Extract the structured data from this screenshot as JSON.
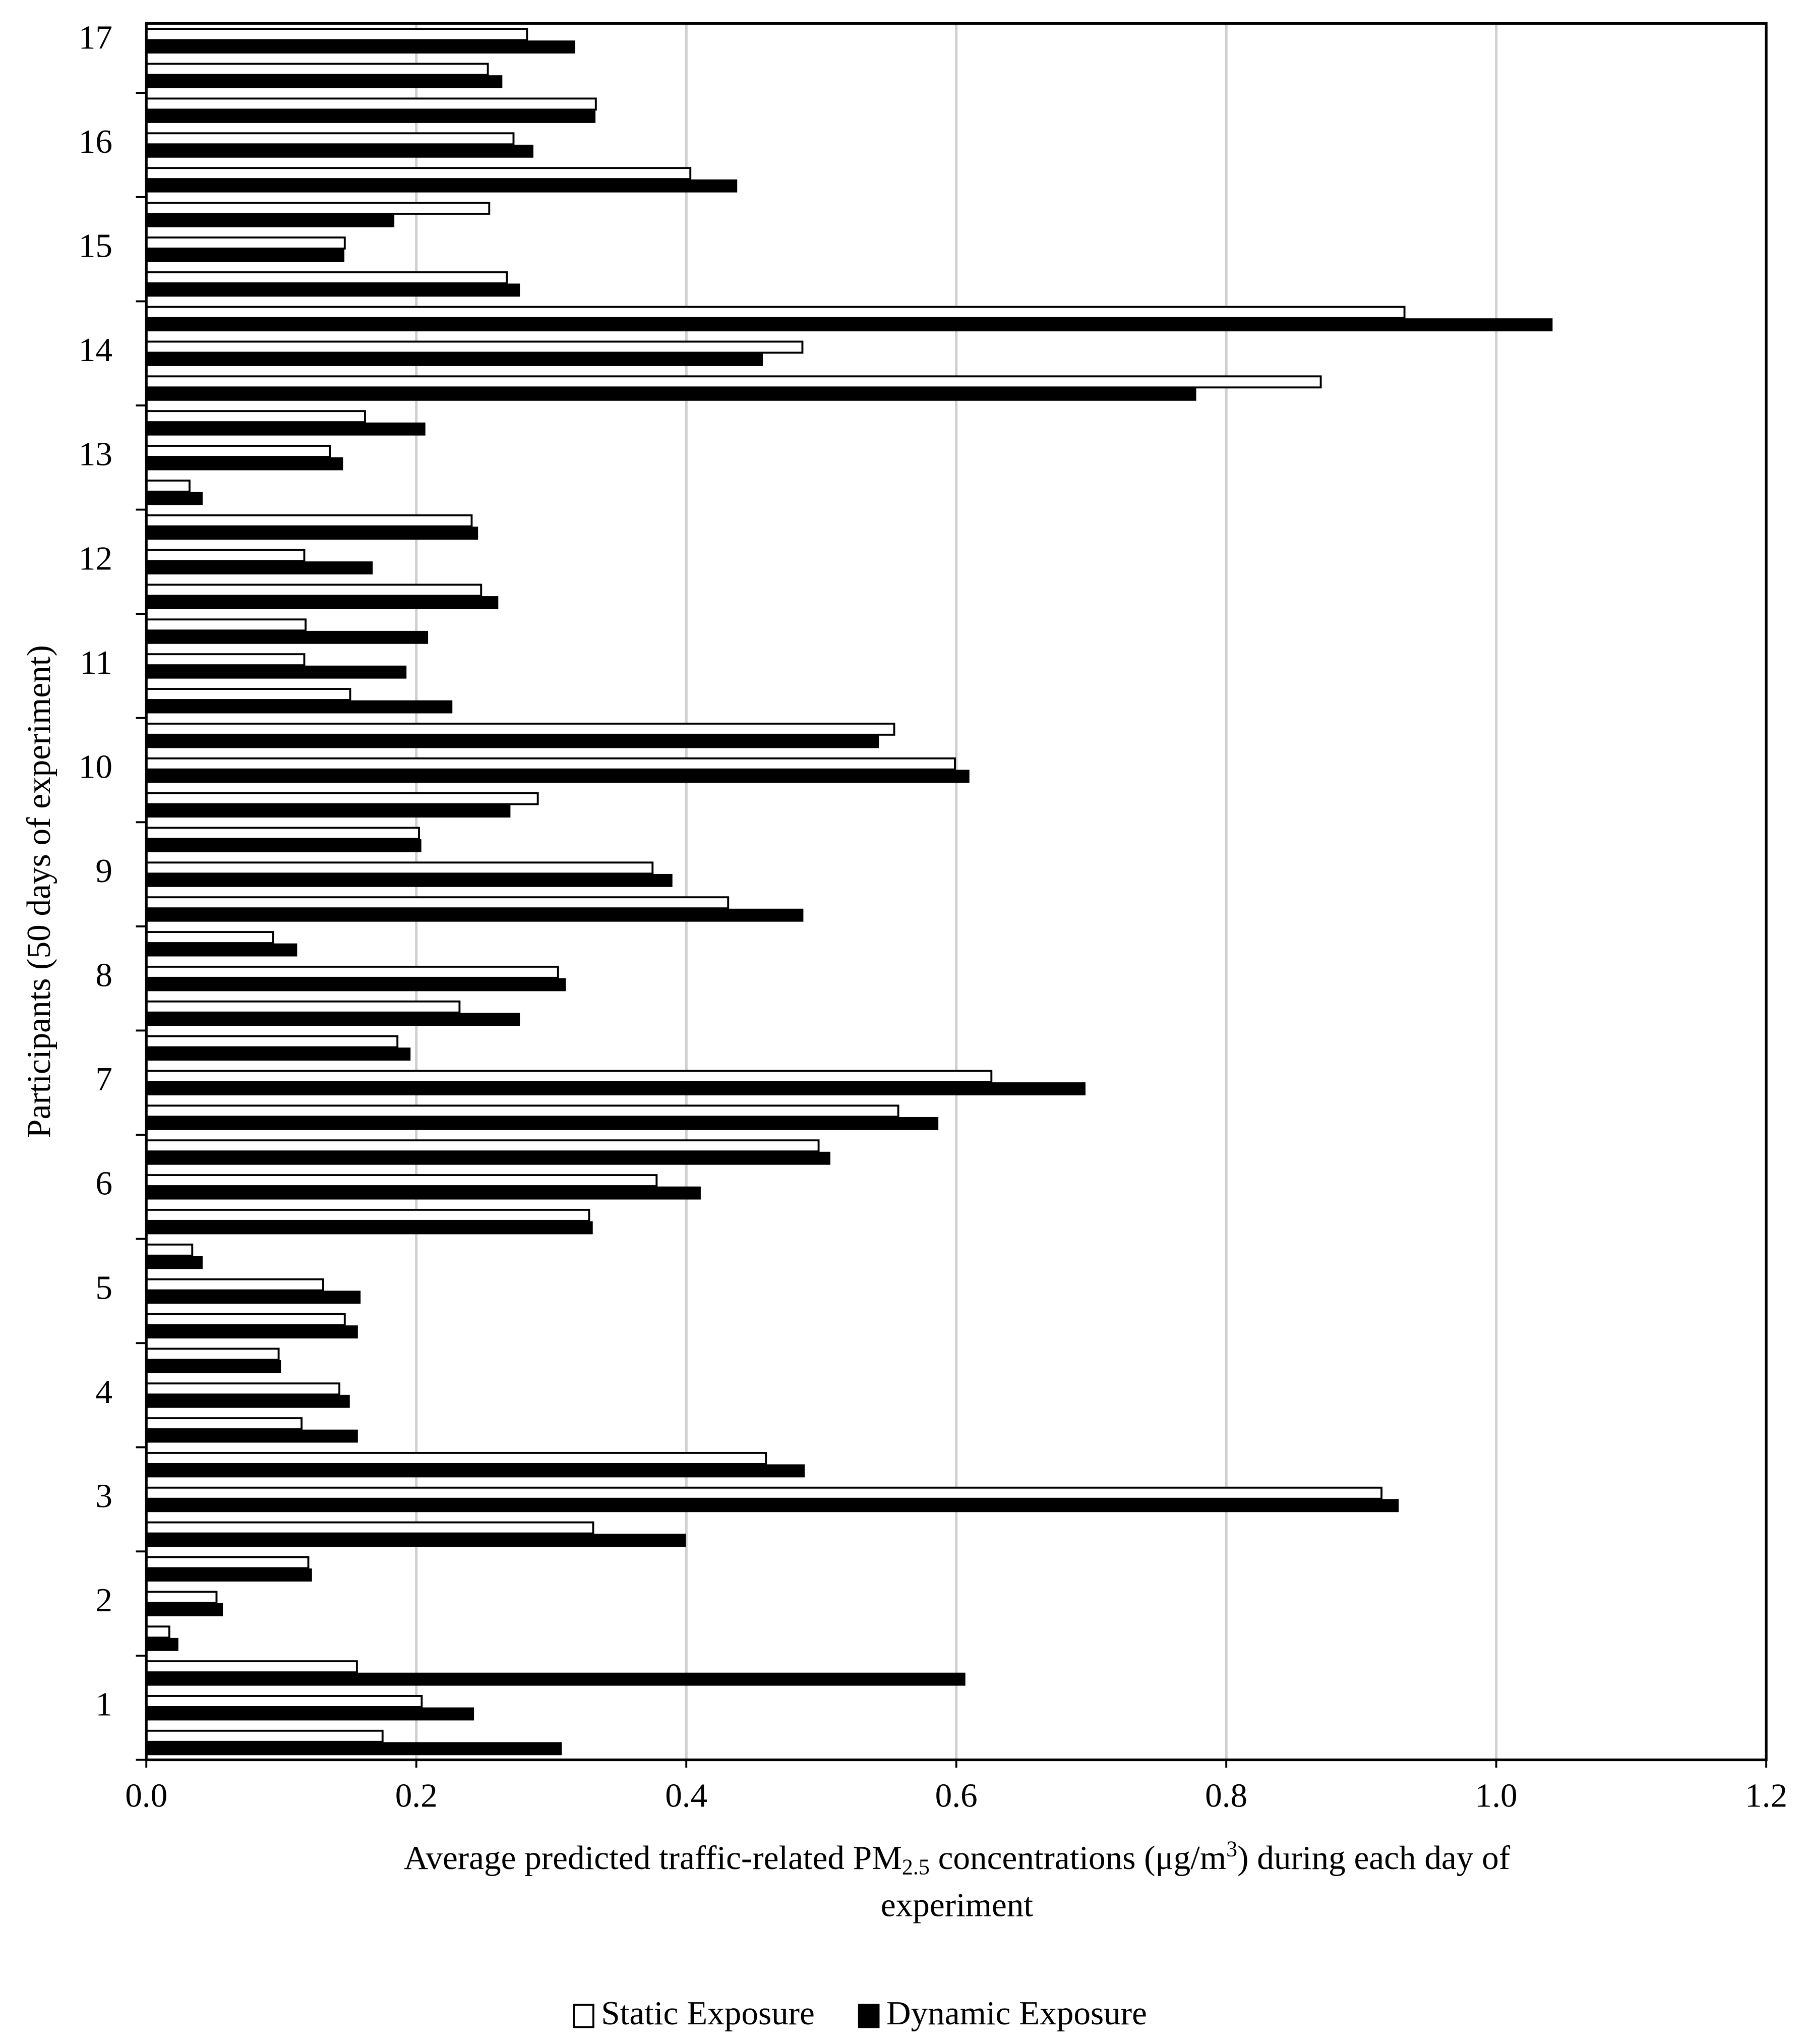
{
  "chart_data": {
    "type": "bar",
    "orientation": "horizontal",
    "y_label": "Participants (50 days of experiment)",
    "x_label": {
      "line1": [
        "Average predicted traffic-related PM",
        "2.5",
        " concentrations (μg/m",
        "3",
        ") during each day of"
      ],
      "line2": "experiment"
    },
    "categories": [
      null,
      "1",
      null,
      null,
      "2",
      null,
      null,
      "3",
      null,
      null,
      "4",
      null,
      null,
      "5",
      null,
      null,
      "6",
      null,
      null,
      "7",
      null,
      null,
      "8",
      null,
      null,
      "9",
      null,
      null,
      "10",
      null,
      null,
      "11",
      null,
      null,
      "12",
      null,
      null,
      "13",
      null,
      null,
      "14",
      null,
      null,
      "15",
      null,
      null,
      "16",
      null,
      null,
      "17"
    ],
    "series": [
      {
        "name": "Static Exposure",
        "color": "#ffffff",
        "stroke": "#000000",
        "values": [
          0.175,
          0.204,
          0.156,
          0.017,
          0.052,
          0.12,
          0.331,
          0.915,
          0.459,
          0.115,
          0.143,
          0.098,
          0.147,
          0.131,
          0.034,
          0.328,
          0.378,
          0.498,
          0.557,
          0.626,
          0.186,
          0.232,
          0.305,
          0.094,
          0.431,
          0.375,
          0.202,
          0.29,
          0.599,
          0.554,
          0.151,
          0.117,
          0.118,
          0.248,
          0.117,
          0.241,
          0.032,
          0.136,
          0.162,
          0.87,
          0.486,
          0.932,
          0.267,
          0.147,
          0.254,
          0.403,
          0.272,
          0.333,
          0.253,
          0.282
        ]
      },
      {
        "name": "Dynamic Exposure",
        "color": "#000000",
        "stroke": "#000000",
        "values": [
          0.307,
          0.242,
          0.606,
          0.023,
          0.056,
          0.122,
          0.399,
          0.927,
          0.487,
          0.156,
          0.15,
          0.099,
          0.156,
          0.158,
          0.041,
          0.33,
          0.41,
          0.506,
          0.586,
          0.695,
          0.195,
          0.276,
          0.31,
          0.111,
          0.486,
          0.389,
          0.203,
          0.269,
          0.609,
          0.542,
          0.226,
          0.192,
          0.208,
          0.26,
          0.167,
          0.245,
          0.041,
          0.145,
          0.206,
          0.777,
          0.456,
          1.041,
          0.276,
          0.146,
          0.183,
          0.437,
          0.286,
          0.332,
          0.263,
          0.317
        ]
      }
    ],
    "xlim": [
      0,
      1.2
    ],
    "xticks": [
      {
        "value": 0,
        "label": "0.0"
      },
      0.2,
      0.4,
      0.6,
      0.8,
      {
        "value": 1,
        "label": "1.0"
      },
      1.2
    ],
    "grid": true,
    "legend": "bottom"
  }
}
